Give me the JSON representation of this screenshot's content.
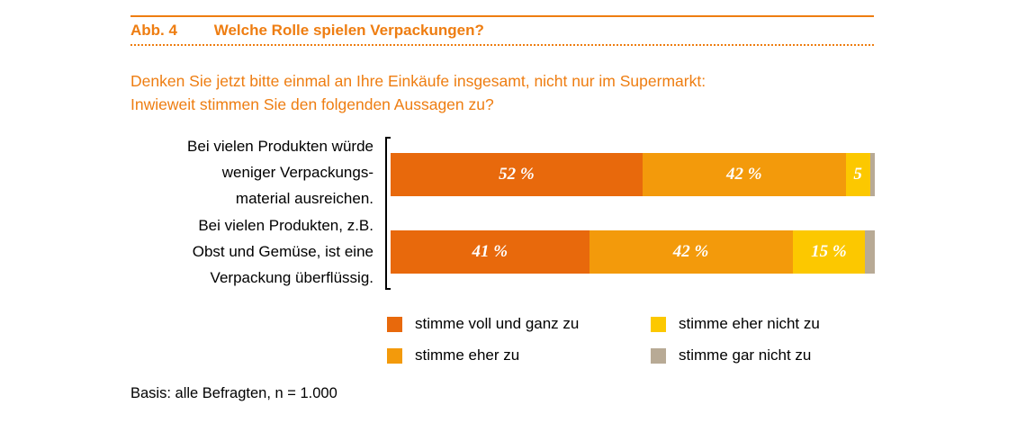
{
  "figure": {
    "number": "Abb. 4",
    "title": "Welche Rolle spielen Verpackungen?"
  },
  "question": {
    "line1": "Denken Sie jetzt bitte einmal an Ihre Einkäufe insgesamt, nicht nur im Supermarkt:",
    "line2": "Inwieweit stimmen Sie den folgenden Aussagen zu?"
  },
  "colors": {
    "accent": "#ee7d11",
    "voll": "#e8690c",
    "eher": "#f39a0b",
    "eher_nicht": "#fcc800",
    "gar_nicht": "#b8aa95"
  },
  "chart_data": {
    "type": "bar",
    "orientation": "horizontal",
    "stacked": true,
    "categories": [
      [
        "Bei vielen Produkten würde",
        "weniger Verpackungs-",
        "material ausreichen."
      ],
      [
        "Bei vielen Produkten, z.B.",
        "Obst und Gemüse, ist eine",
        "Verpackung überflüssig."
      ]
    ],
    "series": [
      {
        "name": "stimme voll und ganz zu",
        "color": "#e8690c",
        "values": [
          52,
          41
        ],
        "labels": [
          "52 %",
          "41 %"
        ]
      },
      {
        "name": "stimme eher zu",
        "color": "#f39a0b",
        "values": [
          42,
          42
        ],
        "labels": [
          "42 %",
          "42 %"
        ]
      },
      {
        "name": "stimme eher nicht zu",
        "color": "#fcc800",
        "values": [
          5,
          15
        ],
        "labels": [
          "5",
          "15 %"
        ]
      },
      {
        "name": "stimme gar nicht zu",
        "color": "#b8aa95",
        "values": [
          1,
          2
        ],
        "labels": [
          "",
          ""
        ]
      }
    ],
    "xlim": [
      0,
      100
    ],
    "legend_position": "bottom"
  },
  "footnote": "Basis: alle Befragten, n = 1.000"
}
